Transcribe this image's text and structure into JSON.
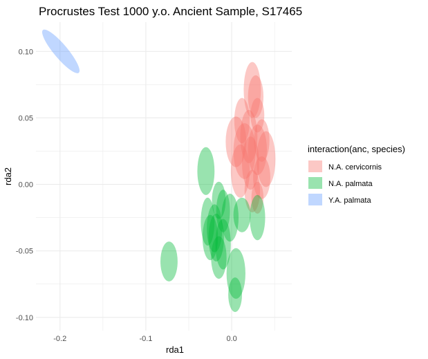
{
  "chart_data": {
    "type": "scatter",
    "title": "Procrustes Test 1000 y.o. Ancient Sample, S17465",
    "xlabel": "rda1",
    "ylabel": "rda2",
    "xlim": [
      -0.228,
      0.07
    ],
    "ylim": [
      -0.11,
      0.122
    ],
    "x_ticks": [
      {
        "value": -0.2,
        "label": "-0.2"
      },
      {
        "value": -0.1,
        "label": "-0.1"
      },
      {
        "value": 0.0,
        "label": "0.0"
      }
    ],
    "y_ticks": [
      {
        "value": 0.1,
        "label": "0.10"
      },
      {
        "value": 0.05,
        "label": "0.05"
      },
      {
        "value": 0.0,
        "label": "0.00"
      },
      {
        "value": -0.05,
        "label": "-0.05"
      },
      {
        "value": -0.1,
        "label": "-0.10"
      }
    ],
    "grid": true,
    "legend_position": "right",
    "legend_title": "interaction(anc, species)",
    "series": [
      {
        "name": "N.A. cervicornis",
        "color": "#f8766d",
        "ellipses": [
          {
            "x": 0.024,
            "y": 0.071,
            "rx": 0.01,
            "ry": 0.021
          },
          {
            "x": 0.028,
            "y": 0.066,
            "rx": 0.009,
            "ry": 0.016
          },
          {
            "x": 0.012,
            "y": 0.048,
            "rx": 0.009,
            "ry": 0.017
          },
          {
            "x": 0.03,
            "y": 0.052,
            "rx": 0.008,
            "ry": 0.013
          },
          {
            "x": 0.005,
            "y": 0.032,
            "rx": 0.012,
            "ry": 0.019
          },
          {
            "x": 0.02,
            "y": 0.036,
            "rx": 0.01,
            "ry": 0.02
          },
          {
            "x": 0.035,
            "y": 0.033,
            "rx": 0.009,
            "ry": 0.016
          },
          {
            "x": 0.015,
            "y": 0.025,
            "rx": 0.013,
            "ry": 0.021
          },
          {
            "x": 0.03,
            "y": 0.026,
            "rx": 0.011,
            "ry": 0.019
          },
          {
            "x": 0.04,
            "y": 0.019,
            "rx": 0.011,
            "ry": 0.021
          },
          {
            "x": 0.022,
            "y": 0.016,
            "rx": 0.01,
            "ry": 0.02
          },
          {
            "x": 0.01,
            "y": 0.01,
            "rx": 0.011,
            "ry": 0.02
          },
          {
            "x": 0.035,
            "y": 0.005,
            "rx": 0.01,
            "ry": 0.016
          },
          {
            "x": 0.024,
            "y": -0.005,
            "rx": 0.009,
            "ry": 0.016
          },
          {
            "x": 0.03,
            "y": -0.01,
            "rx": 0.007,
            "ry": 0.012
          }
        ]
      },
      {
        "name": "N.A. palmata",
        "color": "#00ba38",
        "ellipses": [
          {
            "x": -0.03,
            "y": 0.01,
            "rx": 0.01,
            "ry": 0.018
          },
          {
            "x": -0.015,
            "y": -0.012,
            "rx": 0.008,
            "ry": 0.014
          },
          {
            "x": -0.028,
            "y": -0.028,
            "rx": 0.008,
            "ry": 0.018
          },
          {
            "x": -0.02,
            "y": -0.033,
            "rx": 0.009,
            "ry": 0.018
          },
          {
            "x": -0.01,
            "y": -0.02,
            "rx": 0.008,
            "ry": 0.016
          },
          {
            "x": -0.002,
            "y": -0.025,
            "rx": 0.01,
            "ry": 0.018
          },
          {
            "x": -0.025,
            "y": -0.04,
            "rx": 0.009,
            "ry": 0.017
          },
          {
            "x": -0.018,
            "y": -0.04,
            "rx": 0.009,
            "ry": 0.018
          },
          {
            "x": -0.01,
            "y": -0.045,
            "rx": 0.009,
            "ry": 0.019
          },
          {
            "x": -0.015,
            "y": -0.055,
            "rx": 0.009,
            "ry": 0.016
          },
          {
            "x": 0.012,
            "y": -0.023,
            "rx": 0.01,
            "ry": 0.013
          },
          {
            "x": 0.03,
            "y": -0.025,
            "rx": 0.009,
            "ry": 0.017
          },
          {
            "x": -0.073,
            "y": -0.058,
            "rx": 0.01,
            "ry": 0.015
          },
          {
            "x": 0.005,
            "y": -0.067,
            "rx": 0.011,
            "ry": 0.019
          },
          {
            "x": 0.004,
            "y": -0.083,
            "rx": 0.008,
            "ry": 0.013
          }
        ]
      },
      {
        "name": "Y.A. palmata",
        "color": "#619cff",
        "ellipses": [
          {
            "x": -0.199,
            "y": 0.1,
            "rx": 0.008,
            "ry": 0.021,
            "angle": -40
          }
        ]
      }
    ]
  }
}
